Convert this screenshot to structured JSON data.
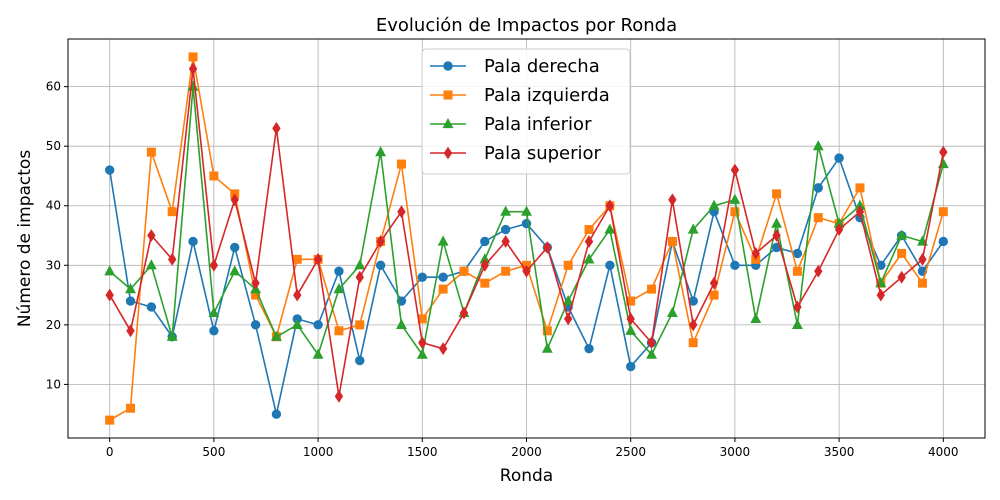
{
  "chart_data": {
    "type": "line",
    "title": "Evolución de Impactos por Ronda",
    "xlabel": "Ronda",
    "ylabel": "Número de impactos",
    "xlim": [
      -200,
      4200
    ],
    "ylim": [
      1,
      68
    ],
    "xticks": [
      0,
      500,
      1000,
      1500,
      2000,
      2500,
      3000,
      3500,
      4000
    ],
    "yticks": [
      10,
      20,
      30,
      40,
      50,
      60
    ],
    "grid": true,
    "legend_position": "top-center",
    "x": [
      0,
      100,
      200,
      300,
      400,
      500,
      600,
      700,
      800,
      900,
      1000,
      1100,
      1200,
      1300,
      1400,
      1500,
      1600,
      1700,
      1800,
      1900,
      2000,
      2100,
      2200,
      2300,
      2400,
      2500,
      2600,
      2700,
      2800,
      2900,
      3000,
      3100,
      3200,
      3300,
      3400,
      3500,
      3600,
      3700,
      3800,
      3900,
      4000
    ],
    "series": [
      {
        "name": "Pala derecha",
        "color": "#1f77b4",
        "marker": "circle",
        "values": [
          46,
          24,
          23,
          18,
          34,
          19,
          33,
          20,
          5,
          21,
          20,
          29,
          14,
          30,
          24,
          28,
          28,
          29,
          34,
          36,
          37,
          33,
          23,
          16,
          30,
          13,
          17,
          34,
          24,
          39,
          30,
          30,
          33,
          32,
          43,
          48,
          38,
          30,
          35,
          29,
          34
        ]
      },
      {
        "name": "Pala izquierda",
        "color": "#ff7f0e",
        "marker": "square",
        "values": [
          4,
          6,
          49,
          39,
          65,
          45,
          42,
          25,
          18,
          31,
          31,
          19,
          20,
          34,
          47,
          21,
          26,
          29,
          27,
          29,
          30,
          19,
          30,
          36,
          40,
          24,
          26,
          34,
          17,
          25,
          39,
          31,
          42,
          29,
          38,
          37,
          43,
          27,
          32,
          27,
          39
        ]
      },
      {
        "name": "Pala inferior",
        "color": "#2ca02c",
        "marker": "triangle",
        "values": [
          29,
          26,
          30,
          18,
          60,
          22,
          29,
          26,
          18,
          20,
          15,
          26,
          30,
          49,
          20,
          15,
          34,
          22,
          31,
          39,
          39,
          16,
          24,
          31,
          36,
          19,
          15,
          22,
          36,
          40,
          41,
          21,
          37,
          20,
          50,
          37,
          40,
          27,
          35,
          34,
          47
        ]
      },
      {
        "name": "Pala superior",
        "color": "#d62728",
        "marker": "diamond",
        "values": [
          25,
          19,
          35,
          31,
          63,
          30,
          41,
          27,
          53,
          25,
          31,
          8,
          28,
          34,
          39,
          17,
          16,
          22,
          30,
          34,
          29,
          33,
          21,
          34,
          40,
          21,
          17,
          41,
          20,
          27,
          46,
          32,
          35,
          23,
          29,
          36,
          39,
          25,
          28,
          31,
          49
        ]
      }
    ]
  }
}
